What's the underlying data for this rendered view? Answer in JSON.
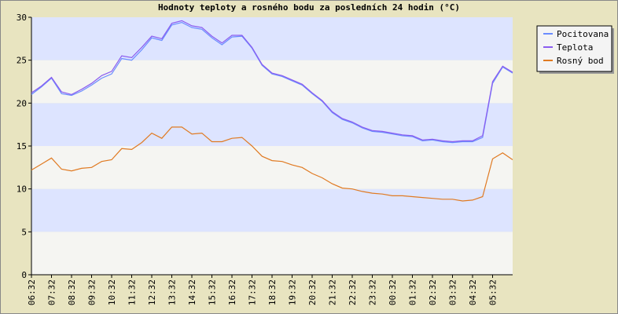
{
  "chart_data": {
    "type": "line",
    "title": "Hodnoty teploty a rosného bodu za posledních 24 hodin (°C)",
    "categories": [
      "06:32",
      null,
      "07:32",
      null,
      "08:32",
      null,
      "09:32",
      null,
      "10:32",
      null,
      "11:32",
      null,
      "12:32",
      null,
      "13:32",
      null,
      "14:32",
      null,
      "15:32",
      null,
      "16:32",
      null,
      "17:32",
      null,
      "18:32",
      null,
      "19:32",
      null,
      "20:32",
      null,
      "21:32",
      null,
      "22:32",
      null,
      "23:32",
      null,
      "00:32",
      null,
      "01:32",
      null,
      "02:32",
      null,
      "03:32",
      null,
      "04:32",
      null,
      "05:32",
      null,
      null
    ],
    "series": [
      {
        "name": "Pocitovana",
        "color": "#6a8cff",
        "values": [
          21.0,
          21.9,
          22.9,
          21.1,
          20.9,
          21.4,
          22.1,
          22.9,
          23.4,
          25.2,
          25.0,
          26.2,
          27.6,
          27.3,
          29.1,
          29.4,
          28.8,
          28.6,
          27.6,
          26.8,
          27.7,
          27.8,
          26.4,
          24.4,
          23.4,
          23.1,
          22.6,
          22.1,
          21.1,
          20.2,
          18.9,
          18.1,
          17.7,
          17.1,
          16.7,
          16.6,
          16.4,
          16.2,
          16.1,
          15.6,
          15.7,
          15.5,
          15.4,
          15.5,
          15.5,
          16.0,
          22.3,
          24.2,
          23.5
        ]
      },
      {
        "name": "Teplota",
        "color": "#8a5cf0",
        "values": [
          21.2,
          22.0,
          23.0,
          21.3,
          21.0,
          21.6,
          22.3,
          23.2,
          23.7,
          25.5,
          25.3,
          26.5,
          27.8,
          27.5,
          29.3,
          29.6,
          29.0,
          28.8,
          27.8,
          27.0,
          27.9,
          27.9,
          26.5,
          24.5,
          23.5,
          23.2,
          22.7,
          22.2,
          21.2,
          20.3,
          19.0,
          18.2,
          17.8,
          17.2,
          16.8,
          16.7,
          16.5,
          16.3,
          16.2,
          15.7,
          15.8,
          15.6,
          15.5,
          15.6,
          15.6,
          16.2,
          22.5,
          24.3,
          23.6
        ]
      },
      {
        "name": "Rosný bod",
        "color": "#e07a22",
        "values": [
          12.2,
          12.9,
          13.6,
          12.3,
          12.1,
          12.4,
          12.5,
          13.2,
          13.4,
          14.7,
          14.6,
          15.4,
          16.5,
          15.9,
          17.2,
          17.2,
          16.4,
          16.5,
          15.5,
          15.5,
          15.9,
          16.0,
          15.0,
          13.8,
          13.3,
          13.2,
          12.8,
          12.5,
          11.8,
          11.3,
          10.6,
          10.1,
          10.0,
          9.7,
          9.5,
          9.4,
          9.2,
          9.2,
          9.1,
          9.0,
          8.9,
          8.8,
          8.8,
          8.6,
          8.7,
          9.1,
          13.5,
          14.2,
          13.4
        ]
      }
    ],
    "ylim": [
      0,
      30
    ],
    "yticks": [
      0,
      5,
      10,
      15,
      20,
      25,
      30
    ],
    "legend": "top-right"
  }
}
